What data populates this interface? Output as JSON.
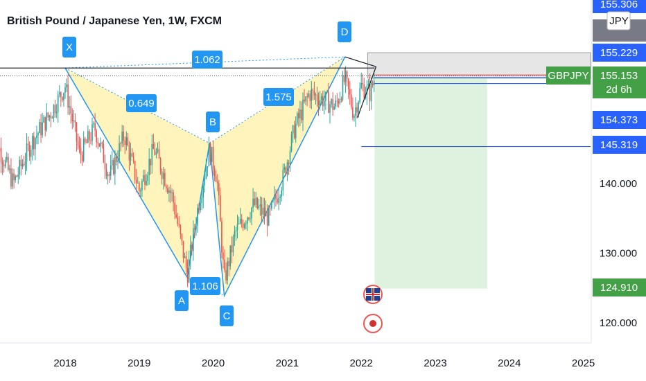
{
  "header": {
    "title": "British Pound / Japanese Yen, 1W, FXCM"
  },
  "chart_data": {
    "type": "candlestick",
    "title": "British Pound / Japanese Yen, 1W, FXCM",
    "symbol": "GBPJPY",
    "timeframe": "1W",
    "source": "FXCM",
    "currency": "JPY",
    "x_ticks": [
      "2018",
      "2019",
      "2020",
      "2021",
      "2022",
      "2023",
      "2024",
      "2025"
    ],
    "y_ticks": [
      120.0,
      130.0,
      140.0
    ],
    "y_tick_labels": [
      "120.000",
      "130.000",
      "140.000"
    ],
    "price_badges": [
      {
        "value": "155.306",
        "color": "#2962ff"
      },
      {
        "value": "155.229",
        "color": "#2962ff"
      },
      {
        "value": "155.153",
        "color": "#43a047",
        "sub": "2d 6h"
      },
      {
        "value": "154.373",
        "color": "#2962ff"
      },
      {
        "value": "145.319",
        "color": "#2962ff"
      },
      {
        "value": "124.910",
        "color": "#43a047"
      }
    ],
    "currency_badge": "JPY",
    "symbol_badge": "GBPJPY",
    "pattern": {
      "name": "bat",
      "points": [
        {
          "label": "X",
          "date": 2018.0,
          "price": 156.6
        },
        {
          "label": "A",
          "date": 2019.65,
          "price": 126.5
        },
        {
          "label": "B",
          "date": 2019.95,
          "price": 145.8
        },
        {
          "label": "C",
          "date": 2020.15,
          "price": 123.9
        },
        {
          "label": "D",
          "date": 2021.78,
          "price": 158.2
        }
      ],
      "ratios": [
        {
          "label": "1.062"
        },
        {
          "label": "0.649"
        },
        {
          "label": "1.575"
        },
        {
          "label": "1.106"
        }
      ]
    },
    "colors": {
      "up": "#26a69a",
      "down": "#ef5350",
      "pattern_fill": "#fff3b0",
      "pattern_line": "#2196f3",
      "target_zone": "#dff1df",
      "stop_zone": "#e6e6e6"
    }
  }
}
